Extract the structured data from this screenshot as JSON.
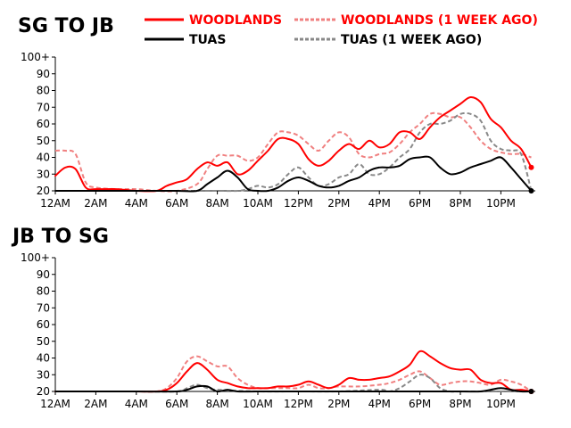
{
  "colors": {
    "woodlands": "#ff0000",
    "woodlands_week_ago": "#f08080",
    "tuas": "#000000",
    "tuas_week_ago": "#888888"
  },
  "legend": {
    "woodlands": "WOODLANDS",
    "woodlands_week_ago": "WOODLANDS (1 WEEK AGO)",
    "tuas": "TUAS",
    "tuas_week_ago": "TUAS (1 WEEK AGO)"
  },
  "chart_data": [
    {
      "type": "line",
      "title": "SG TO JB",
      "x_tick_labels": [
        "12AM",
        "2AM",
        "4AM",
        "6AM",
        "8AM",
        "10AM",
        "12PM",
        "2PM",
        "4PM",
        "6PM",
        "8PM",
        "10PM"
      ],
      "y_tick_labels": [
        "20",
        "30",
        "40",
        "50",
        "60",
        "70",
        "80",
        "90",
        "100+"
      ],
      "ylim": [
        20,
        100
      ],
      "xlim": [
        0,
        23.7
      ],
      "legend_position": "top-right",
      "series": [
        {
          "name": "WOODLANDS",
          "key": "woodlands",
          "style": "solid",
          "end_marker": true,
          "x": [
            0,
            0.5,
            1,
            1.5,
            2,
            3,
            4,
            5,
            5.5,
            6,
            6.5,
            7,
            7.5,
            8,
            8.5,
            9,
            9.5,
            10,
            10.5,
            11,
            11.5,
            12,
            12.5,
            13,
            13.5,
            14,
            14.5,
            15,
            15.5,
            16,
            16.5,
            17,
            17.5,
            18,
            18.5,
            19,
            19.5,
            20,
            20.5,
            21,
            21.5,
            22,
            22.5,
            23,
            23.5
          ],
          "y": [
            29,
            34,
            33,
            22,
            21,
            21,
            20,
            20,
            23,
            25,
            27,
            33,
            37,
            35,
            37,
            30,
            32,
            38,
            44,
            51,
            51,
            48,
            39,
            35,
            38,
            44,
            48,
            45,
            50,
            46,
            48,
            55,
            55,
            51,
            58,
            64,
            68,
            72,
            76,
            73,
            63,
            58,
            50,
            45,
            34
          ]
        },
        {
          "name": "TUAS",
          "key": "tuas",
          "style": "solid",
          "end_marker": true,
          "x": [
            0,
            1,
            2,
            3,
            4,
            5,
            6,
            7,
            7.5,
            8,
            8.5,
            9,
            9.5,
            10,
            10.5,
            11,
            11.5,
            12,
            12.5,
            13,
            13.5,
            14,
            14.5,
            15,
            15.5,
            16,
            16.5,
            17,
            17.5,
            18,
            18.5,
            19,
            19.5,
            20,
            20.5,
            21,
            21.5,
            22,
            22.5,
            23,
            23.5
          ],
          "y": [
            20,
            20,
            20,
            20,
            20,
            20,
            20,
            20,
            24,
            28,
            32,
            28,
            21,
            20,
            20,
            22,
            26,
            28,
            26,
            23,
            22,
            23,
            26,
            28,
            32,
            34,
            34,
            35,
            39,
            40,
            40,
            34,
            30,
            31,
            34,
            36,
            38,
            40,
            34,
            27,
            20
          ]
        },
        {
          "name": "WOODLANDS (1 WEEK AGO)",
          "key": "woodlands_week_ago",
          "style": "dashed",
          "end_marker": false,
          "x": [
            0,
            0.5,
            1,
            1.5,
            2,
            3,
            4,
            5,
            6,
            7,
            7.5,
            8,
            8.5,
            9,
            9.5,
            10,
            10.5,
            11,
            11.5,
            12,
            12.5,
            13,
            13.5,
            14,
            14.5,
            15,
            15.5,
            16,
            16.5,
            17,
            17.5,
            18,
            18.5,
            19,
            19.5,
            20,
            20.5,
            21,
            21.5,
            22,
            22.5,
            23,
            23.5
          ],
          "y": [
            44,
            44,
            42,
            25,
            22,
            21,
            21,
            20,
            20,
            24,
            33,
            41,
            41,
            41,
            38,
            40,
            48,
            55,
            55,
            53,
            48,
            44,
            50,
            55,
            52,
            42,
            40,
            42,
            43,
            48,
            55,
            60,
            66,
            66,
            64,
            64,
            58,
            50,
            45,
            43,
            42,
            42,
            40
          ]
        },
        {
          "name": "TUAS (1 WEEK AGO)",
          "key": "tuas_week_ago",
          "style": "dashed",
          "end_marker": false,
          "x": [
            0,
            2,
            4,
            6,
            7,
            8,
            9,
            9.5,
            10,
            10.5,
            11,
            11.5,
            12,
            12.5,
            13,
            13.5,
            14,
            14.5,
            15,
            15.5,
            16,
            16.5,
            17,
            17.5,
            18,
            18.5,
            19,
            19.5,
            20,
            20.5,
            21,
            21.5,
            22,
            22.5,
            23,
            23.5
          ],
          "y": [
            20,
            20,
            20,
            20,
            20,
            20,
            20,
            21,
            23,
            22,
            24,
            30,
            34,
            28,
            23,
            24,
            28,
            30,
            36,
            30,
            30,
            34,
            40,
            45,
            55,
            60,
            60,
            62,
            66,
            66,
            62,
            50,
            45,
            44,
            42,
            20
          ]
        }
      ]
    },
    {
      "type": "line",
      "title": "JB TO SG",
      "x_tick_labels": [
        "12AM",
        "2AM",
        "4AM",
        "6AM",
        "8AM",
        "10AM",
        "12PM",
        "2PM",
        "4PM",
        "6PM",
        "8PM",
        "10PM"
      ],
      "y_tick_labels": [
        "20",
        "30",
        "40",
        "50",
        "60",
        "70",
        "80",
        "90",
        "100+"
      ],
      "ylim": [
        20,
        100
      ],
      "xlim": [
        0,
        23.7
      ],
      "series": [
        {
          "name": "WOODLANDS",
          "key": "woodlands",
          "style": "solid",
          "end_marker": true,
          "x": [
            0,
            1,
            2,
            3,
            4,
            5,
            5.5,
            6,
            6.5,
            7,
            7.5,
            8,
            8.5,
            9,
            9.5,
            10,
            10.5,
            11,
            11.5,
            12,
            12.5,
            13,
            13.5,
            14,
            14.5,
            15,
            15.5,
            16,
            16.5,
            17,
            17.5,
            18,
            18.5,
            19,
            19.5,
            20,
            20.5,
            21,
            21.5,
            22,
            22.5,
            23,
            23.5
          ],
          "y": [
            20,
            20,
            20,
            20,
            20,
            20,
            21,
            25,
            32,
            37,
            33,
            27,
            25,
            23,
            22,
            22,
            22,
            23,
            23,
            24,
            26,
            24,
            22,
            24,
            28,
            27,
            27,
            28,
            29,
            32,
            36,
            44,
            41,
            37,
            34,
            33,
            33,
            27,
            25,
            25,
            21,
            21,
            20
          ]
        },
        {
          "name": "TUAS",
          "key": "tuas",
          "style": "solid",
          "end_marker": true,
          "x": [
            0,
            2,
            4,
            6,
            6.5,
            7,
            7.5,
            8,
            8.5,
            9,
            10,
            12,
            14,
            16,
            18,
            20,
            21,
            21.5,
            22,
            22.5,
            23,
            23.5
          ],
          "y": [
            20,
            20,
            20,
            20,
            21,
            23,
            23,
            20,
            21,
            20,
            20,
            20,
            20,
            20,
            20,
            20,
            20,
            21,
            22,
            21,
            20,
            20
          ]
        },
        {
          "name": "WOODLANDS (1 WEEK AGO)",
          "key": "woodlands_week_ago",
          "style": "dashed",
          "end_marker": false,
          "x": [
            0,
            2,
            4,
            5,
            5.5,
            6,
            6.5,
            7,
            7.5,
            8,
            8.5,
            9,
            9.5,
            10,
            10.5,
            11,
            11.5,
            12,
            12.5,
            13,
            13.5,
            14,
            15,
            16,
            16.5,
            17,
            17.5,
            18,
            18.5,
            19,
            19.5,
            20,
            20.5,
            21,
            21.5,
            22,
            22.5,
            23,
            23.5
          ],
          "y": [
            20,
            20,
            20,
            20,
            22,
            28,
            38,
            41,
            38,
            35,
            35,
            28,
            24,
            22,
            22,
            22,
            22,
            22,
            24,
            22,
            22,
            23,
            23,
            24,
            25,
            27,
            30,
            32,
            28,
            24,
            25,
            26,
            26,
            25,
            24,
            27,
            26,
            24,
            20
          ]
        },
        {
          "name": "TUAS (1 WEEK AGO)",
          "key": "tuas_week_ago",
          "style": "dashed",
          "end_marker": false,
          "x": [
            0,
            2,
            4,
            6,
            6.5,
            7,
            7.5,
            8,
            10,
            12,
            14,
            16,
            16.5,
            17,
            17.5,
            18,
            18.5,
            19,
            19.5,
            20,
            21,
            22,
            23,
            23.5
          ],
          "y": [
            20,
            20,
            20,
            20,
            22,
            24,
            22,
            21,
            20,
            20,
            20,
            21,
            20,
            22,
            26,
            30,
            28,
            22,
            20,
            20,
            20,
            20,
            20,
            20
          ]
        }
      ]
    }
  ]
}
